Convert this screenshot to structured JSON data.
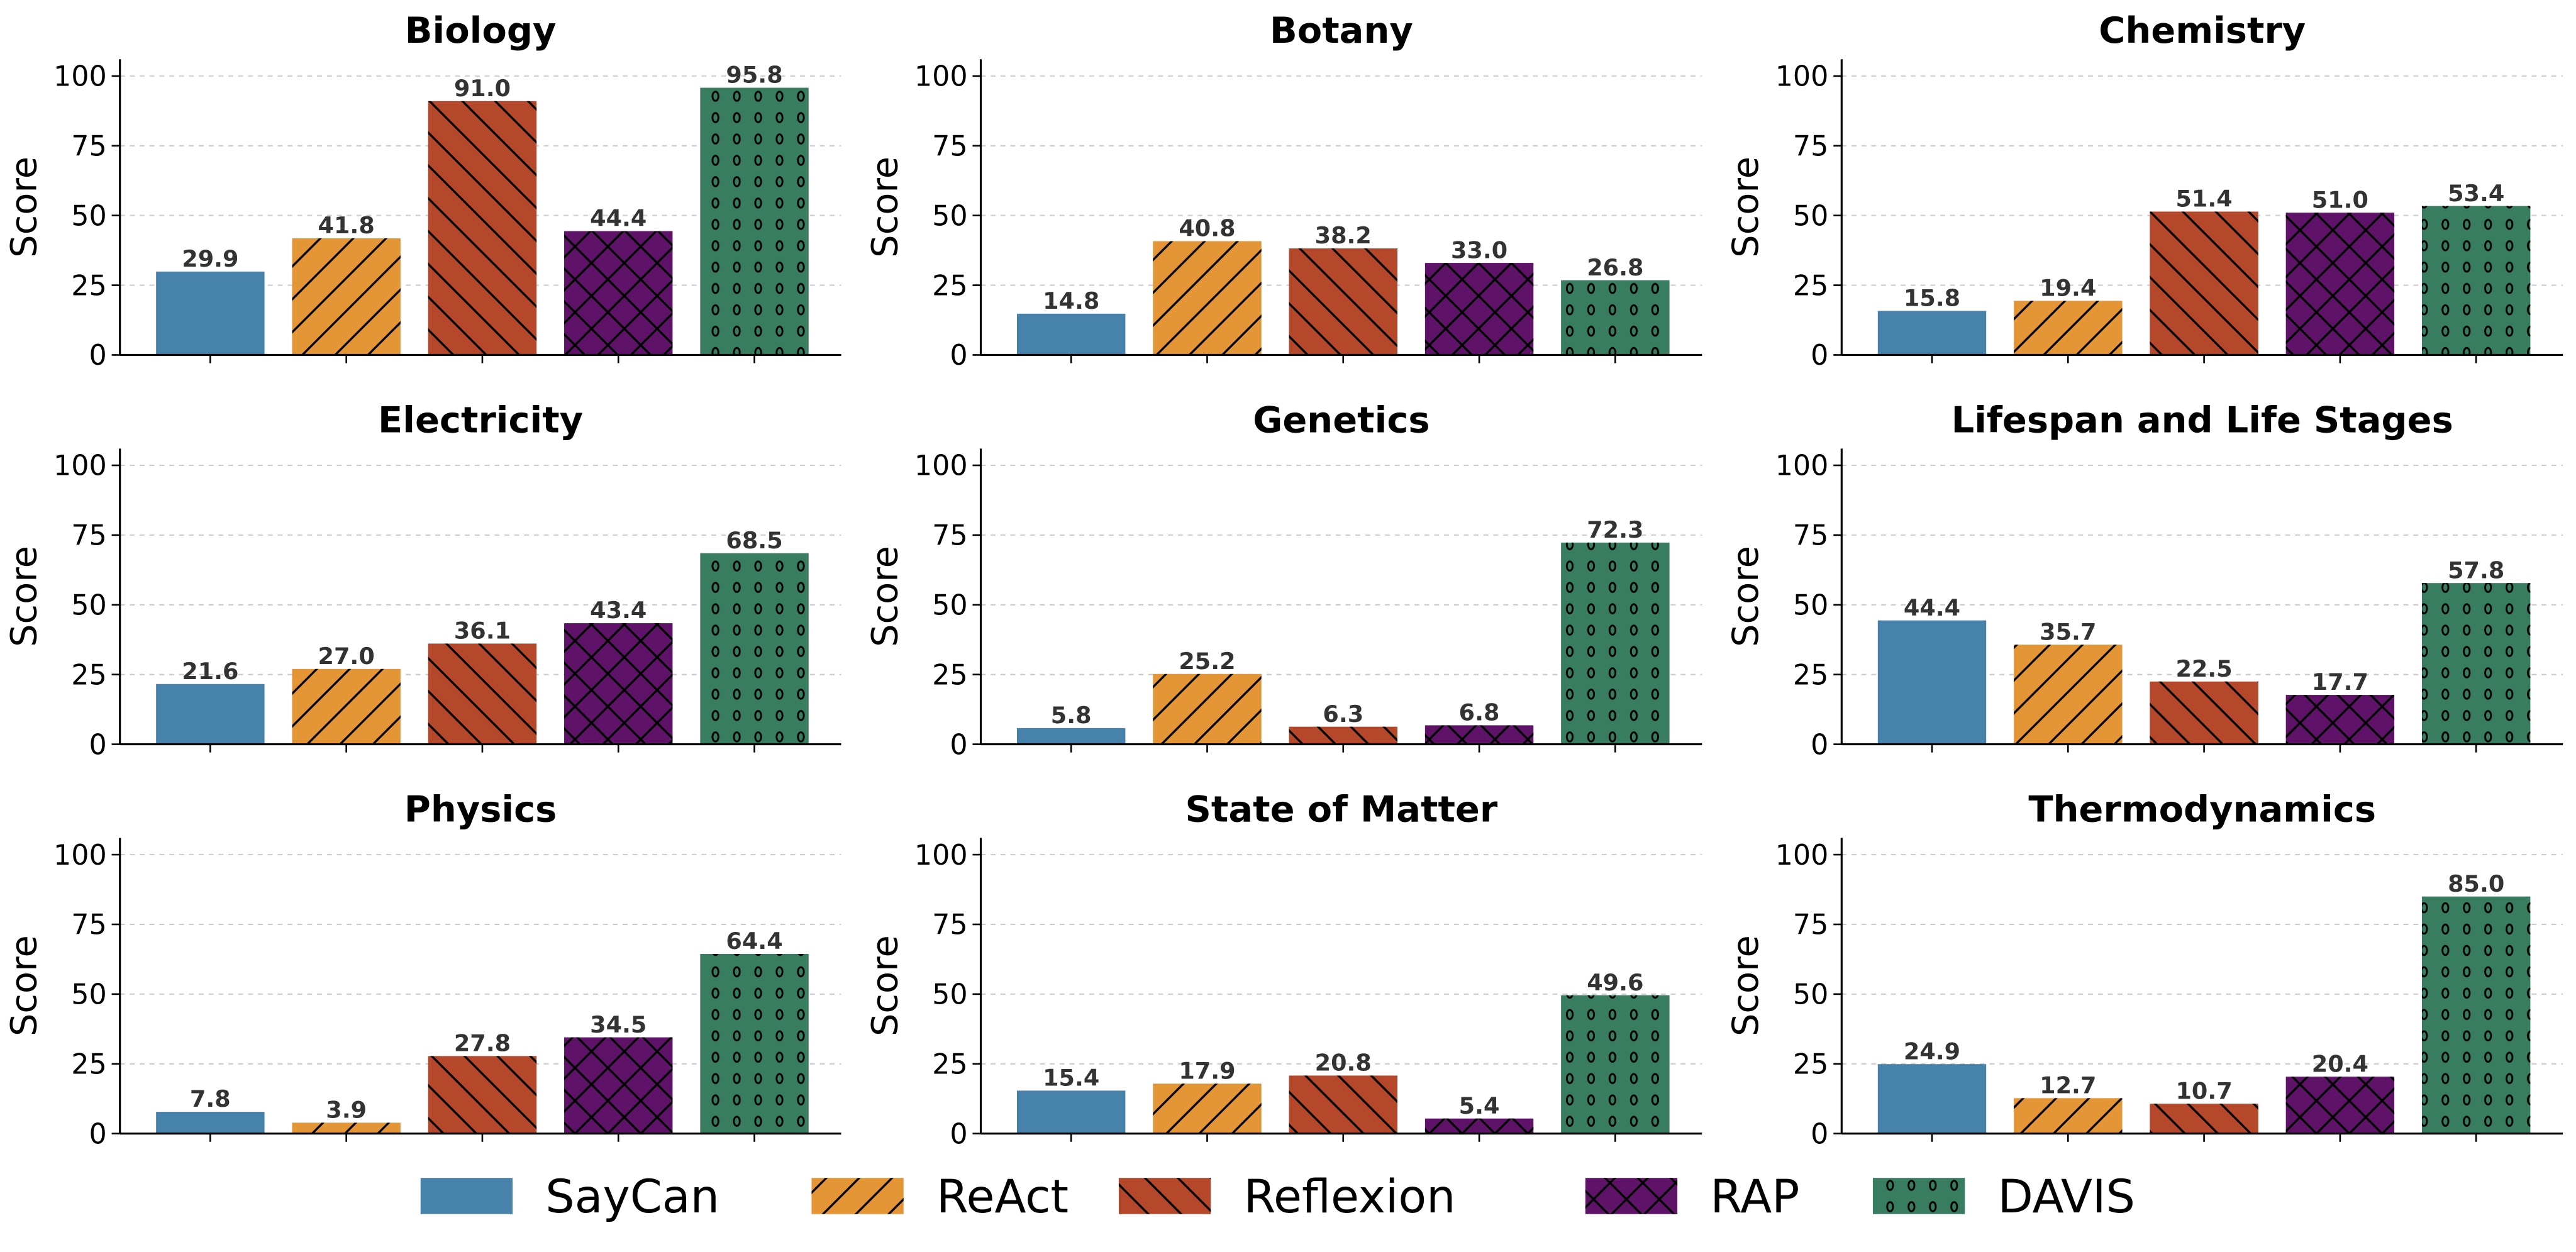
{
  "chart_data": {
    "type": "bar",
    "layout": "3x3 grid of subplots",
    "ylabel": "Score",
    "ylim": [
      0,
      106
    ],
    "yticks": [
      0,
      25,
      50,
      75,
      100
    ],
    "grid": "horizontal dashed",
    "legend_position": "bottom",
    "series": [
      {
        "name": "SayCan",
        "color": "#4682A9",
        "hatch": "none"
      },
      {
        "name": "ReAct",
        "color": "#E49536",
        "hatch": "/"
      },
      {
        "name": "Reflexion",
        "color": "#B5472B",
        "hatch": "\\"
      },
      {
        "name": "RAP",
        "color": "#5E1368",
        "hatch": "x"
      },
      {
        "name": "DAVIS",
        "color": "#387D60",
        "hatch": "o"
      }
    ],
    "panels": [
      {
        "title": "Biology",
        "values": [
          29.9,
          41.8,
          91.0,
          44.4,
          95.8
        ]
      },
      {
        "title": "Botany",
        "values": [
          14.8,
          40.8,
          38.2,
          33.0,
          26.8
        ]
      },
      {
        "title": "Chemistry",
        "values": [
          15.8,
          19.4,
          51.4,
          51.0,
          53.4
        ]
      },
      {
        "title": "Electricity",
        "values": [
          21.6,
          27.0,
          36.1,
          43.4,
          68.5
        ]
      },
      {
        "title": "Genetics",
        "values": [
          5.8,
          25.2,
          6.3,
          6.8,
          72.3
        ]
      },
      {
        "title": "Lifespan and Life Stages",
        "values": [
          44.4,
          35.7,
          22.5,
          17.7,
          57.8
        ]
      },
      {
        "title": "Physics",
        "values": [
          7.8,
          3.9,
          27.8,
          34.5,
          64.4
        ]
      },
      {
        "title": "State of Matter",
        "values": [
          15.4,
          17.9,
          20.8,
          5.4,
          49.6
        ]
      },
      {
        "title": "Thermodynamics",
        "values": [
          24.9,
          12.7,
          10.7,
          20.4,
          85.0
        ]
      }
    ]
  }
}
